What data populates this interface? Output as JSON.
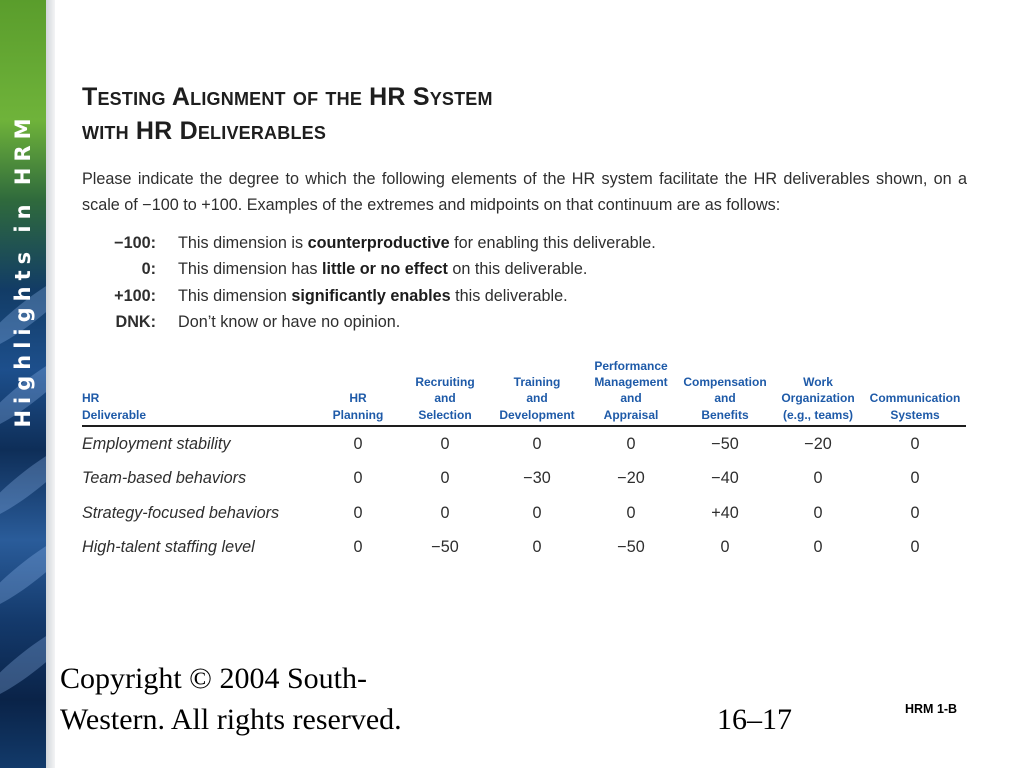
{
  "sidebar": {
    "title_first": "Highlights in",
    "title_second": "HRM"
  },
  "title": {
    "line1": "Testing Alignment of the HR System",
    "line2": "with HR Deliverables"
  },
  "intro": "Please indicate the degree to which the following elements of the HR system facilitate the HR deliverables shown, on a scale of −100 to +100. Examples of the extremes and midpoints on that continuum are as follows:",
  "scale": [
    {
      "code": "−100:",
      "pre": "This dimension is ",
      "emph": "counterproductive",
      "post": " for enabling this deliverable."
    },
    {
      "code": "0:",
      "pre": "This dimension has ",
      "emph": "little or no effect",
      "post": " on this deliverable."
    },
    {
      "code": "+100:",
      "pre": "This dimension ",
      "emph": "significantly enables",
      "post": " this deliverable."
    },
    {
      "code": "DNK:",
      "pre": "Don’t know or have no opinion.",
      "emph": "",
      "post": ""
    }
  ],
  "table": {
    "headers": [
      [
        "HR",
        "Deliverable"
      ],
      [
        "HR",
        "Planning"
      ],
      [
        "Recruiting",
        "and",
        "Selection"
      ],
      [
        "Training",
        "and",
        "Development"
      ],
      [
        "Performance",
        "Management",
        "and",
        "Appraisal"
      ],
      [
        "Compensation",
        "and",
        "Benefits"
      ],
      [
        "Work",
        "Organization",
        "(e.g., teams)"
      ],
      [
        "Communication",
        "Systems"
      ]
    ],
    "rows": [
      {
        "label": "Employment stability",
        "values": [
          "0",
          "0",
          "0",
          "0",
          "−50",
          "−20",
          "0"
        ]
      },
      {
        "label": "Team-based behaviors",
        "values": [
          "0",
          "0",
          "−30",
          "−20",
          "−40",
          "0",
          "0"
        ]
      },
      {
        "label": "Strategy-focused behaviors",
        "values": [
          "0",
          "0",
          "0",
          "0",
          "+40",
          "0",
          "0"
        ]
      },
      {
        "label": "High-talent staffing level",
        "values": [
          "0",
          "−50",
          "0",
          "−50",
          "0",
          "0",
          "0"
        ]
      }
    ]
  },
  "footer": {
    "copyright_line1": "Copyright © 2004 South-",
    "copyright_line2": "Western. All rights reserved.",
    "slide_number": "16–17",
    "tag": "HRM 1-B"
  }
}
